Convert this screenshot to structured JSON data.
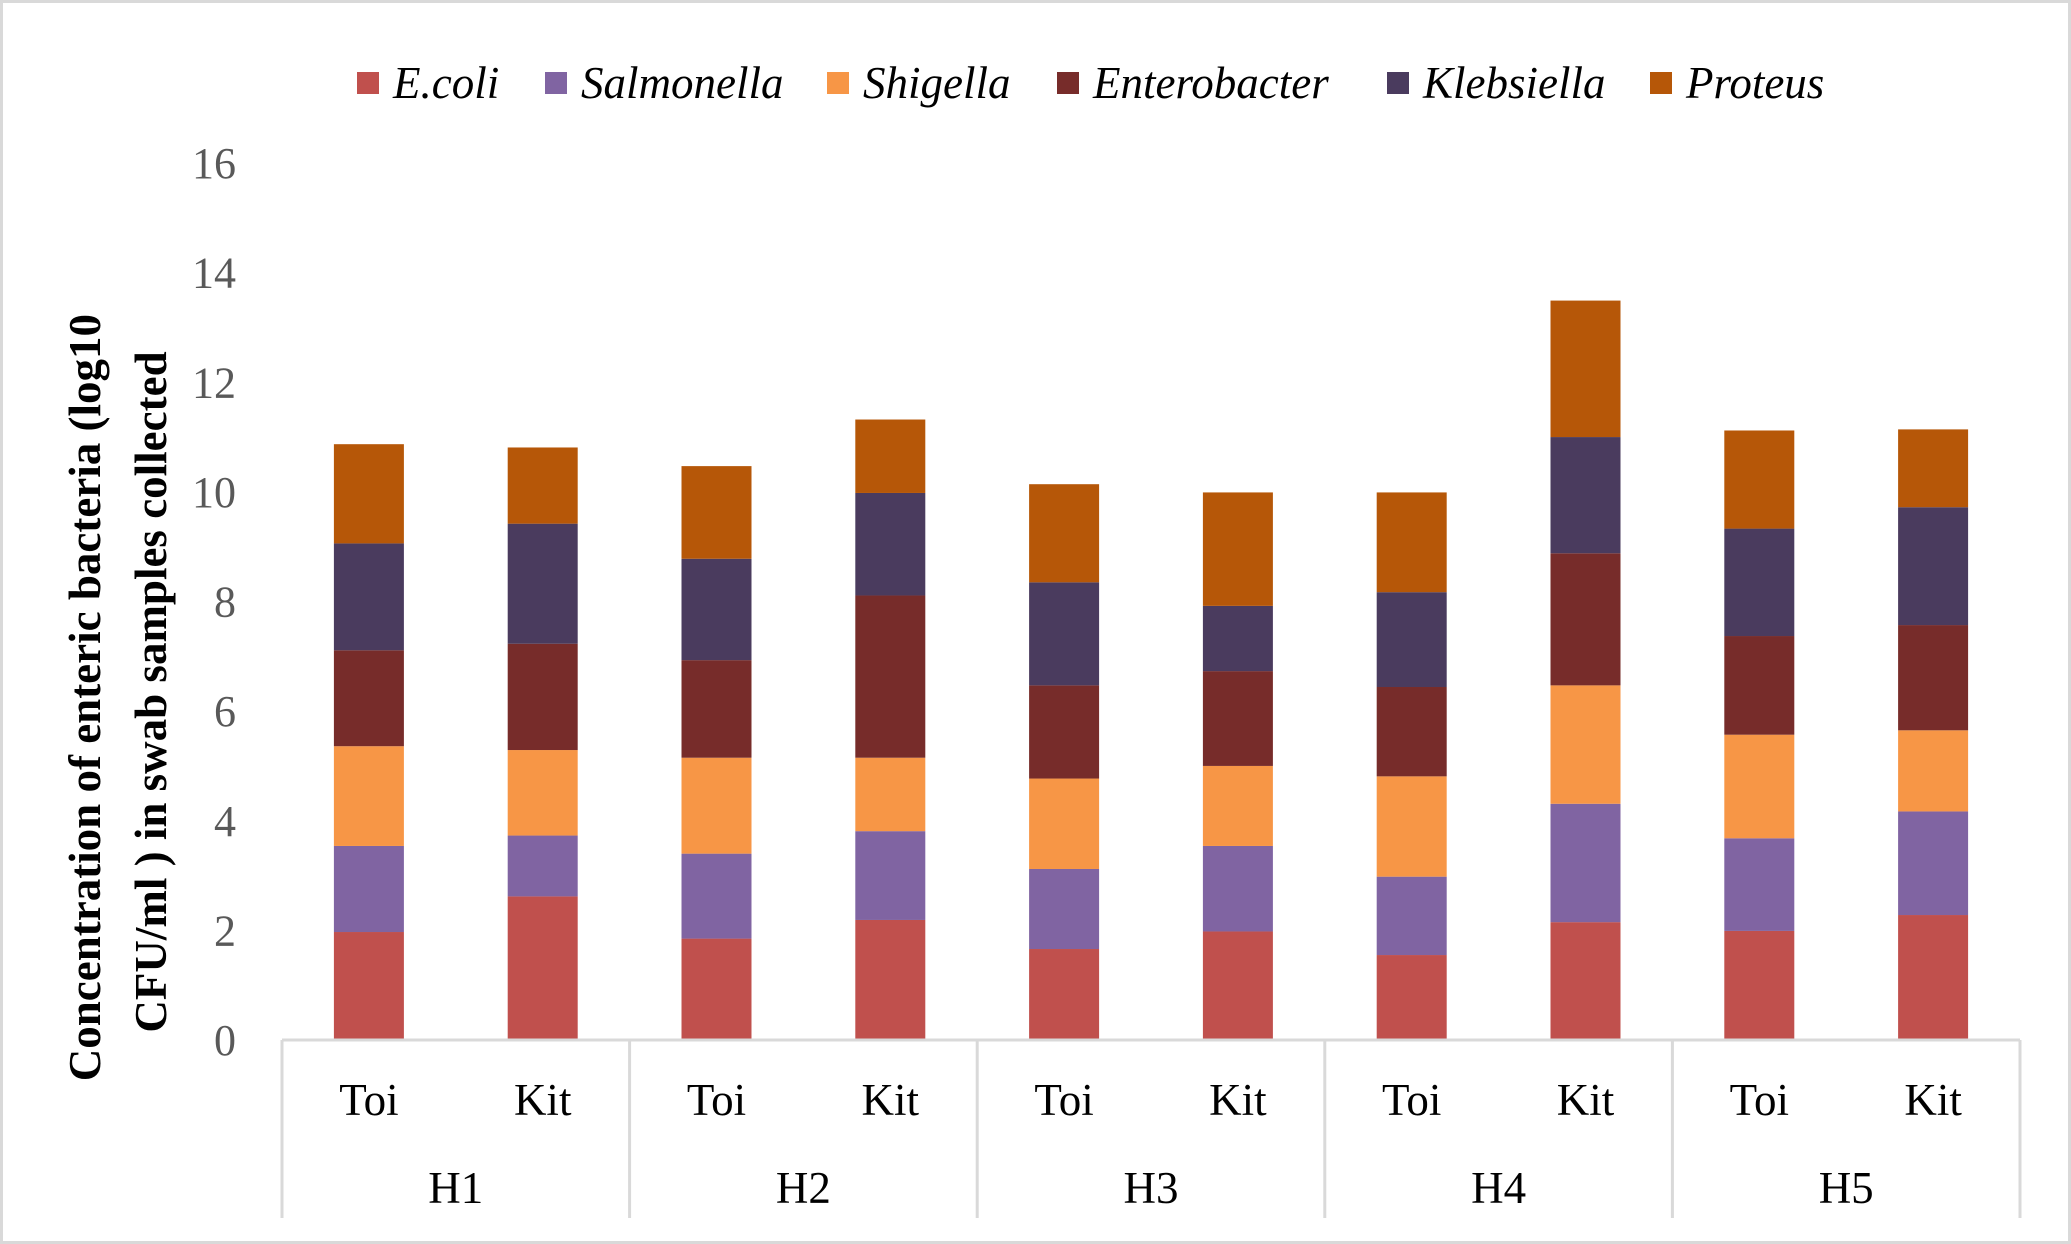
{
  "chart_data": {
    "type": "bar",
    "stacked": true,
    "title": "",
    "ylabel_lines": [
      "Concentration of enteric bacteria (log10",
      "CFU/ml ) in swab samples collected"
    ],
    "xlabel": "",
    "ylim": [
      0,
      16
    ],
    "yticks": [
      "0",
      "2",
      "4",
      "6",
      "8",
      "10",
      "12",
      "14",
      "16"
    ],
    "legend_position": "top",
    "groups": [
      {
        "label": "H1",
        "subcategories": [
          "Toi",
          "Kit"
        ]
      },
      {
        "label": "H2",
        "subcategories": [
          "Toi",
          "Kit"
        ]
      },
      {
        "label": "H3",
        "subcategories": [
          "Toi",
          "Kit"
        ]
      },
      {
        "label": "H4",
        "subcategories": [
          "Toi",
          "Kit"
        ]
      },
      {
        "label": "H5",
        "subcategories": [
          "Toi",
          "Kit"
        ]
      }
    ],
    "series": [
      {
        "name": "E.coli",
        "color": "#c0504d",
        "values": [
          1.97,
          2.62,
          1.85,
          2.19,
          1.66,
          1.98,
          1.55,
          2.15,
          1.99,
          2.28
        ]
      },
      {
        "name": "Salmonella",
        "color": "#8064a2",
        "values": [
          1.57,
          1.11,
          1.55,
          1.62,
          1.46,
          1.56,
          1.43,
          2.16,
          1.69,
          1.89
        ]
      },
      {
        "name": "Shigella",
        "color": "#f79646",
        "values": [
          1.82,
          1.56,
          1.75,
          1.34,
          1.65,
          1.46,
          1.83,
          2.16,
          1.89,
          1.48
        ]
      },
      {
        "name": "Enterobacter",
        "color": "#772c2a",
        "values": [
          1.75,
          1.94,
          1.78,
          2.96,
          1.7,
          1.73,
          1.63,
          2.41,
          1.8,
          1.92
        ]
      },
      {
        "name": "Klebsiella",
        "color": "#4a3b5e",
        "values": [
          1.95,
          2.19,
          1.85,
          1.87,
          1.88,
          1.19,
          1.73,
          2.12,
          1.96,
          2.15
        ]
      },
      {
        "name": "Proteus",
        "color": "#b65708",
        "values": [
          1.81,
          1.39,
          1.69,
          1.34,
          1.79,
          2.07,
          1.82,
          2.49,
          1.79,
          1.42
        ]
      }
    ]
  }
}
